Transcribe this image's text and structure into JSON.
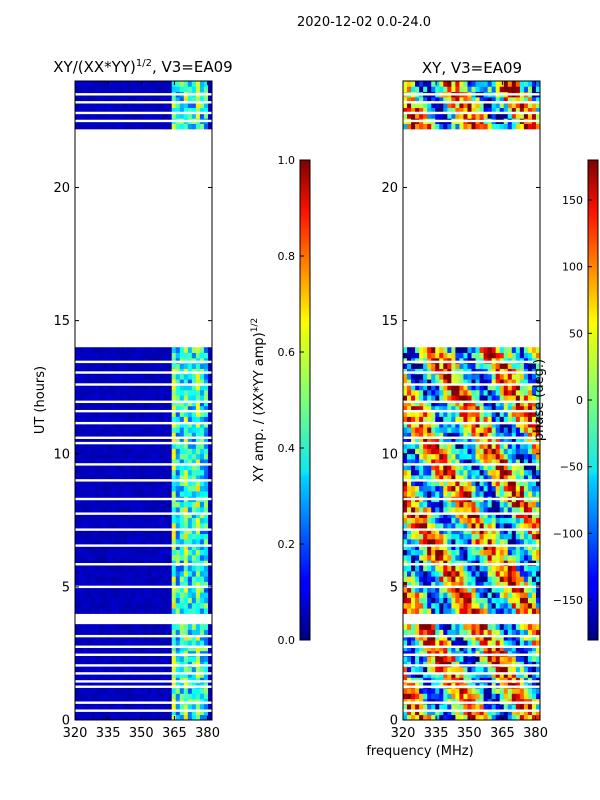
{
  "figure": {
    "suptitle": "2020-12-02 0.0-24.0",
    "xlabel": "frequency (MHz)"
  },
  "chart_data": [
    {
      "type": "heatmap",
      "title": "XY/(XX*YY)",
      "title_sup": "1/2",
      "title_suffix": ", V3=EA09",
      "xlabel": "",
      "ylabel": "UT (hours)",
      "xlim": [
        320,
        382
      ],
      "ylim": [
        0,
        24
      ],
      "x_ticks": [
        320,
        335,
        350,
        365,
        380
      ],
      "y_ticks": [
        0,
        5,
        10,
        15,
        20
      ],
      "colormap": "jet",
      "colorbar": {
        "label": "XY amp. / (XX*YY amp)",
        "label_sup": "1/2",
        "range": [
          0.0,
          1.0
        ],
        "ticks": [
          "0.0",
          "0.2",
          "0.4",
          "0.6",
          "0.8",
          "1.0"
        ]
      },
      "data_rows_ut": [
        [
          0.0,
          3.6
        ],
        [
          4.0,
          14.0
        ],
        [
          22.2,
          24.0
        ]
      ],
      "row_gaps_ut": [
        0.35,
        0.65,
        1.25,
        1.45,
        1.75,
        2.05,
        2.45,
        2.75,
        3.15,
        5.0,
        5.85,
        6.55,
        7.15,
        7.75,
        8.3,
        9.0,
        9.6,
        10.4,
        10.6,
        11.15,
        11.6,
        11.95,
        12.6,
        13.05,
        13.45,
        22.5,
        22.8,
        23.2,
        23.5
      ],
      "bright_freq_band_mhz": [
        364,
        381
      ]
    },
    {
      "type": "heatmap",
      "title": "XY, V3=EA09",
      "xlabel": "frequency (MHz)",
      "ylabel": "",
      "xlim": [
        320,
        382
      ],
      "ylim": [
        0,
        24
      ],
      "x_ticks": [
        320,
        335,
        350,
        365,
        380
      ],
      "y_ticks": [
        0,
        5,
        10,
        15,
        20
      ],
      "colormap": "jet",
      "colorbar": {
        "label": "phase (deg.)",
        "range": [
          -180,
          180
        ],
        "ticks": [
          "150",
          "100",
          "50",
          "0",
          "−50",
          "−100",
          "−150"
        ]
      },
      "data_rows_ut": [
        [
          0.0,
          3.6
        ],
        [
          4.0,
          14.0
        ],
        [
          22.2,
          24.0
        ]
      ],
      "row_gaps_ut": [
        0.35,
        0.65,
        1.25,
        1.45,
        1.75,
        2.05,
        2.45,
        2.75,
        3.15,
        5.0,
        5.85,
        6.55,
        7.15,
        7.75,
        8.3,
        9.0,
        9.6,
        10.4,
        10.6,
        11.15,
        11.6,
        11.95,
        12.6,
        13.05,
        13.45,
        22.5,
        22.8,
        23.2,
        23.5
      ]
    }
  ]
}
